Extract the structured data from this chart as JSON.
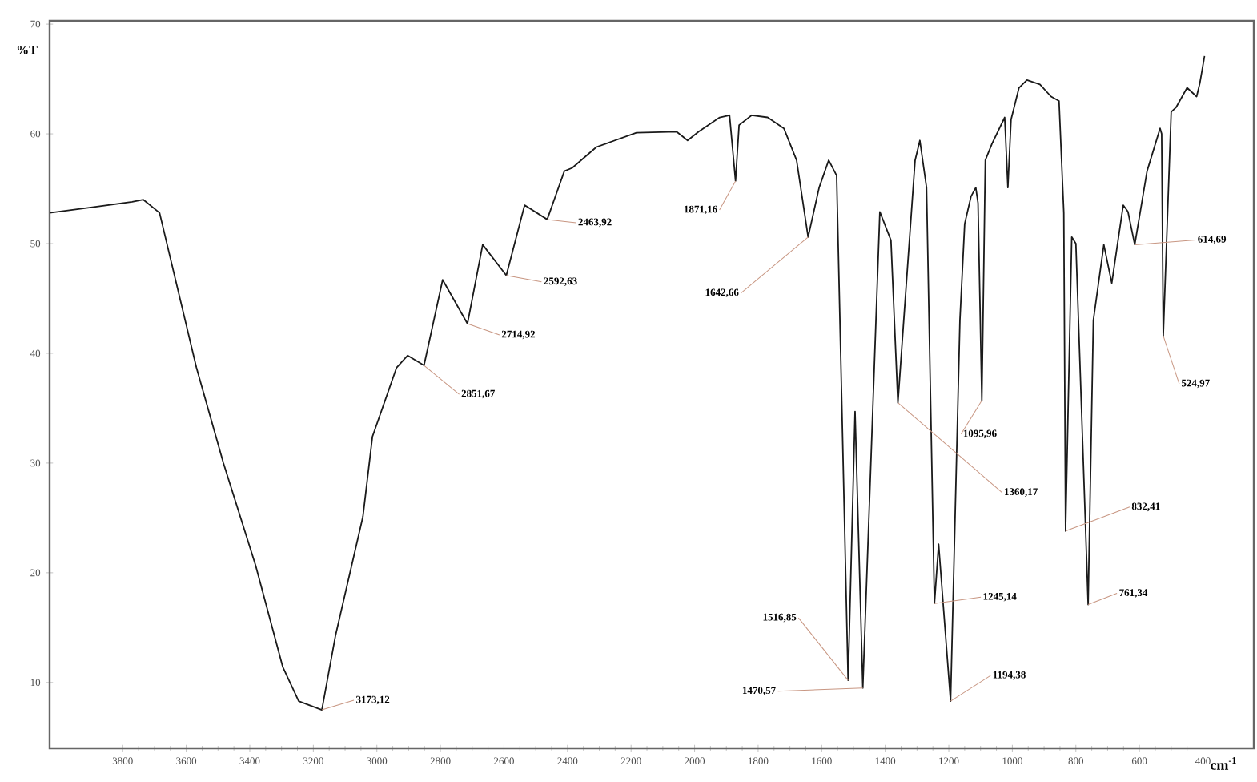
{
  "chart_data": {
    "type": "line",
    "xlabel": "cm$^{-1}$",
    "ylabel": "%T",
    "x": [
      4030,
      3900,
      3770,
      3735,
      3684,
      3568,
      3483,
      3382,
      3296,
      3246,
      3173.12,
      3130,
      3044,
      3014,
      2938,
      2903,
      2851.67,
      2793,
      2714.92,
      2667,
      2592.63,
      2535,
      2463.92,
      2410,
      2385,
      2309,
      2183,
      2057,
      2022,
      1987,
      1921,
      1890,
      1871.16,
      1860,
      1820,
      1770,
      1719,
      1679,
      1642.66,
      1608,
      1578,
      1553,
      1516.85,
      1495,
      1470.57,
      1417,
      1382,
      1360.17,
      1306,
      1291,
      1270,
      1245.14,
      1232,
      1194.38,
      1165,
      1150,
      1130,
      1115,
      1108,
      1095.96,
      1085,
      1064,
      1024,
      1014,
      1004,
      979,
      954,
      913,
      878,
      853,
      838,
      832.41,
      813,
      800,
      761.34,
      745,
      712,
      687,
      651,
      636,
      614.69,
      576,
      535,
      530,
      524.97,
      500,
      485,
      450,
      420,
      410,
      395
    ],
    "series": [
      {
        "color": "#1a1a1a",
        "values": [
          52.8,
          53.3,
          53.8,
          54.0,
          52.8,
          38.7,
          30.0,
          20.7,
          11.4,
          8.3,
          7.5,
          14.3,
          25.1,
          32.4,
          38.7,
          39.8,
          38.9,
          46.7,
          42.7,
          49.9,
          47.1,
          53.5,
          52.2,
          56.6,
          56.9,
          58.8,
          60.1,
          60.2,
          59.4,
          60.2,
          61.5,
          61.7,
          55.7,
          60.8,
          61.7,
          61.5,
          60.5,
          57.6,
          50.6,
          55.1,
          57.6,
          56.2,
          10.2,
          34.7,
          9.5,
          52.9,
          50.3,
          35.5,
          57.6,
          59.4,
          55.1,
          17.2,
          22.6,
          8.3,
          43.0,
          51.8,
          54.3,
          55.1,
          53.7,
          35.7,
          57.6,
          59.1,
          61.5,
          55.1,
          61.3,
          64.2,
          64.9,
          64.5,
          63.4,
          63.0,
          52.8,
          23.8,
          50.6,
          50.0,
          17.1,
          43.0,
          49.9,
          46.4,
          53.5,
          52.9,
          49.9,
          56.6,
          60.5,
          60.0,
          41.6,
          62.0,
          62.4,
          64.2,
          63.4,
          64.6,
          67.1
        ]
      }
    ],
    "xlim": [
      4030,
      240
    ],
    "ylim": [
      4,
      70.3
    ],
    "xticks": [
      3800,
      3600,
      3400,
      3200,
      3000,
      2800,
      2600,
      2400,
      2200,
      2000,
      1800,
      1600,
      1400,
      1200,
      1000,
      800,
      600,
      400
    ],
    "yticks": [
      10,
      20,
      30,
      40,
      50,
      60,
      70
    ],
    "grid": false,
    "marker": "none",
    "line_style": "solid",
    "annotations": [
      {
        "text": "3173,12",
        "x": 3173.12,
        "y": 7.5
      },
      {
        "text": "2851,67",
        "x": 2851.67,
        "y": 38.9
      },
      {
        "text": "2714,92",
        "x": 2714.92,
        "y": 42.7
      },
      {
        "text": "2592,63",
        "x": 2592.63,
        "y": 47.1
      },
      {
        "text": "2463,92",
        "x": 2463.92,
        "y": 52.2
      },
      {
        "text": "1871,16",
        "x": 1871.16,
        "y": 55.7
      },
      {
        "text": "1642,66",
        "x": 1642.66,
        "y": 50.6
      },
      {
        "text": "1516,85",
        "x": 1516.85,
        "y": 10.2
      },
      {
        "text": "1470,57",
        "x": 1470.57,
        "y": 9.5
      },
      {
        "text": "1360,17",
        "x": 1360.17,
        "y": 35.5
      },
      {
        "text": "1245,14",
        "x": 1245.14,
        "y": 17.2
      },
      {
        "text": "1194,38",
        "x": 1194.38,
        "y": 8.3
      },
      {
        "text": "1095,96",
        "x": 1095.96,
        "y": 35.7
      },
      {
        "text": "832,41",
        "x": 832.41,
        "y": 23.8
      },
      {
        "text": "761,34",
        "x": 761.34,
        "y": 17.1
      },
      {
        "text": "614,69",
        "x": 614.69,
        "y": 49.9
      },
      {
        "text": "524,97",
        "x": 524.97,
        "y": 41.6
      }
    ]
  }
}
